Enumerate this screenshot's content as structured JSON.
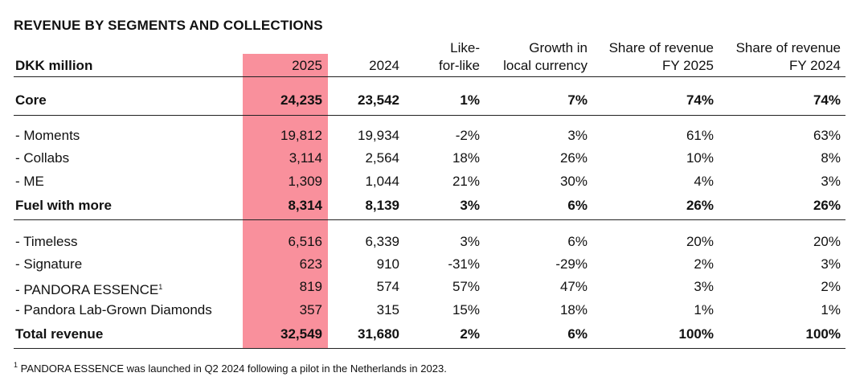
{
  "title": "REVENUE BY SEGMENTS AND COLLECTIONS",
  "columns": [
    {
      "line1": "",
      "line2": "DKK million"
    },
    {
      "line1": "",
      "line2": "2025"
    },
    {
      "line1": "",
      "line2": "2024"
    },
    {
      "line1": "Like-",
      "line2": "for-like"
    },
    {
      "line1": "Growth in",
      "line2": "local currency"
    },
    {
      "line1": "Share of revenue",
      "line2": "FY 2025"
    },
    {
      "line1": "Share of revenue",
      "line2": "FY 2024"
    }
  ],
  "rows": [
    {
      "label": "Core",
      "bold": true,
      "values": [
        "24,235",
        "23,542",
        "1%",
        "7%",
        "74%",
        "74%"
      ]
    },
    {
      "label": "- Moments",
      "bold": false,
      "values": [
        "19,812",
        "19,934",
        "-2%",
        "3%",
        "61%",
        "63%"
      ]
    },
    {
      "label": "- Collabs",
      "bold": false,
      "values": [
        "3,114",
        "2,564",
        "18%",
        "26%",
        "10%",
        "8%"
      ]
    },
    {
      "label": "- ME",
      "bold": false,
      "values": [
        "1,309",
        "1,044",
        "21%",
        "30%",
        "4%",
        "3%"
      ]
    },
    {
      "label": "Fuel with more",
      "bold": true,
      "values": [
        "8,314",
        "8,139",
        "3%",
        "6%",
        "26%",
        "26%"
      ]
    },
    {
      "label": "- Timeless",
      "bold": false,
      "values": [
        "6,516",
        "6,339",
        "3%",
        "6%",
        "20%",
        "20%"
      ]
    },
    {
      "label": "- Signature",
      "bold": false,
      "values": [
        "623",
        "910",
        "-31%",
        "-29%",
        "2%",
        "3%"
      ]
    },
    {
      "label": "- PANDORA ESSENCE",
      "sup": "1",
      "bold": false,
      "values": [
        "819",
        "574",
        "57%",
        "47%",
        "3%",
        "2%"
      ]
    },
    {
      "label": "- Pandora Lab-Grown Diamonds",
      "bold": false,
      "values": [
        "357",
        "315",
        "15%",
        "18%",
        "1%",
        "1%"
      ]
    },
    {
      "label": "Total revenue",
      "bold": true,
      "values": [
        "32,549",
        "31,680",
        "2%",
        "6%",
        "100%",
        "100%"
      ]
    }
  ],
  "footnote": {
    "marker": "1",
    "text": "PANDORA ESSENCE was launched in Q2 2024 following a pilot in the Netherlands in 2023."
  },
  "colors": {
    "highlight": "#f9909c",
    "rule": "#222222",
    "text": "#111111"
  }
}
